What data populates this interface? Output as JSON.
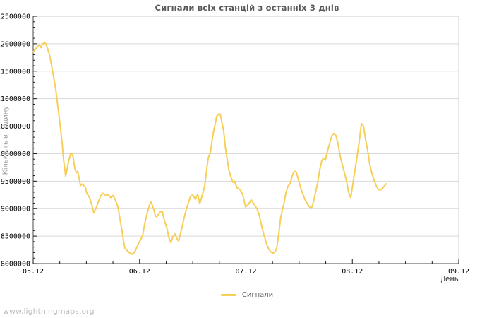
{
  "title": "Сигнали всіх станцій з останніх 3 днів",
  "watermark": "www.lightningmaps.org",
  "legend": {
    "label": "Сигнали"
  },
  "colors": {
    "line": "#f7ce58",
    "grid": "#d9d9d9",
    "axis_dark": "#4a4a4a",
    "axis_light": "#cccccc",
    "tick": "#1a1a1a",
    "title_text": "#595959",
    "watermark_text": "#bdbdbd"
  },
  "chart_data": {
    "type": "line",
    "title": "Сигнали всіх станцій з останніх 3 днів",
    "xlabel": "День",
    "ylabel": "Кількість в годину",
    "legend_position": "bottom-center",
    "grid": "horizontal-only",
    "ylim": [
      8000000,
      12500000
    ],
    "y_major_step": 500000,
    "y_minor_step": 100000,
    "y_tick_labels": [
      "8000000",
      "8500000",
      "9000000",
      "9500000",
      "10000000",
      "10500000",
      "11000000",
      "11500000",
      "12000000",
      "12500000"
    ],
    "xlim_days": [
      0,
      4
    ],
    "x_tick_labels": [
      "05.12",
      "06.12",
      "07.12",
      "08.12",
      "09.12"
    ],
    "x_minor_step_days": 0.25,
    "series": [
      {
        "name": "Сигнали",
        "color": "#f7ce58",
        "points": [
          [
            0.0,
            11850000
          ],
          [
            0.02,
            11900000
          ],
          [
            0.04,
            11950000
          ],
          [
            0.06,
            11980000
          ],
          [
            0.073,
            11930000
          ],
          [
            0.086,
            11990000
          ],
          [
            0.106,
            12020000
          ],
          [
            0.119,
            12000000
          ],
          [
            0.133,
            11930000
          ],
          [
            0.153,
            11800000
          ],
          [
            0.172,
            11620000
          ],
          [
            0.192,
            11400000
          ],
          [
            0.212,
            11170000
          ],
          [
            0.232,
            10850000
          ],
          [
            0.252,
            10550000
          ],
          [
            0.272,
            10200000
          ],
          [
            0.285,
            9900000
          ],
          [
            0.305,
            9590000
          ],
          [
            0.318,
            9700000
          ],
          [
            0.332,
            9850000
          ],
          [
            0.352,
            10000000
          ],
          [
            0.371,
            9990000
          ],
          [
            0.391,
            9740000
          ],
          [
            0.405,
            9650000
          ],
          [
            0.418,
            9680000
          ],
          [
            0.438,
            9500000
          ],
          [
            0.444,
            9420000
          ],
          [
            0.464,
            9450000
          ],
          [
            0.478,
            9410000
          ],
          [
            0.491,
            9390000
          ],
          [
            0.504,
            9280000
          ],
          [
            0.531,
            9200000
          ],
          [
            0.551,
            9070000
          ],
          [
            0.57,
            8920000
          ],
          [
            0.59,
            9000000
          ],
          [
            0.617,
            9150000
          ],
          [
            0.637,
            9240000
          ],
          [
            0.657,
            9280000
          ],
          [
            0.683,
            9240000
          ],
          [
            0.703,
            9260000
          ],
          [
            0.73,
            9200000
          ],
          [
            0.75,
            9240000
          ],
          [
            0.77,
            9170000
          ],
          [
            0.796,
            9040000
          ],
          [
            0.816,
            8810000
          ],
          [
            0.836,
            8590000
          ],
          [
            0.849,
            8410000
          ],
          [
            0.862,
            8280000
          ],
          [
            0.882,
            8240000
          ],
          [
            0.902,
            8200000
          ],
          [
            0.929,
            8170000
          ],
          [
            0.949,
            8200000
          ],
          [
            0.962,
            8240000
          ],
          [
            0.982,
            8330000
          ],
          [
            1.002,
            8410000
          ],
          [
            1.028,
            8500000
          ],
          [
            1.048,
            8720000
          ],
          [
            1.068,
            8890000
          ],
          [
            1.094,
            9070000
          ],
          [
            1.108,
            9130000
          ],
          [
            1.134,
            8980000
          ],
          [
            1.148,
            8870000
          ],
          [
            1.161,
            8850000
          ],
          [
            1.194,
            8940000
          ],
          [
            1.214,
            8950000
          ],
          [
            1.234,
            8780000
          ],
          [
            1.26,
            8630000
          ],
          [
            1.274,
            8480000
          ],
          [
            1.294,
            8380000
          ],
          [
            1.313,
            8490000
          ],
          [
            1.333,
            8540000
          ],
          [
            1.353,
            8450000
          ],
          [
            1.367,
            8410000
          ],
          [
            1.393,
            8610000
          ],
          [
            1.413,
            8780000
          ],
          [
            1.433,
            8940000
          ],
          [
            1.459,
            9110000
          ],
          [
            1.479,
            9220000
          ],
          [
            1.499,
            9250000
          ],
          [
            1.526,
            9170000
          ],
          [
            1.546,
            9260000
          ],
          [
            1.566,
            9090000
          ],
          [
            1.592,
            9260000
          ],
          [
            1.612,
            9410000
          ],
          [
            1.632,
            9720000
          ],
          [
            1.645,
            9920000
          ],
          [
            1.665,
            10020000
          ],
          [
            1.692,
            10370000
          ],
          [
            1.712,
            10550000
          ],
          [
            1.725,
            10680000
          ],
          [
            1.745,
            10720000
          ],
          [
            1.758,
            10720000
          ],
          [
            1.771,
            10600000
          ],
          [
            1.791,
            10410000
          ],
          [
            1.804,
            10150000
          ],
          [
            1.824,
            9890000
          ],
          [
            1.838,
            9720000
          ],
          [
            1.857,
            9590000
          ],
          [
            1.877,
            9480000
          ],
          [
            1.891,
            9500000
          ],
          [
            1.917,
            9380000
          ],
          [
            1.944,
            9350000
          ],
          [
            1.97,
            9250000
          ],
          [
            1.997,
            9030000
          ],
          [
            2.023,
            9080000
          ],
          [
            2.05,
            9160000
          ],
          [
            2.076,
            9080000
          ],
          [
            2.103,
            9000000
          ],
          [
            2.123,
            8900000
          ],
          [
            2.143,
            8720000
          ],
          [
            2.169,
            8520000
          ],
          [
            2.196,
            8350000
          ],
          [
            2.216,
            8260000
          ],
          [
            2.236,
            8210000
          ],
          [
            2.255,
            8190000
          ],
          [
            2.275,
            8220000
          ],
          [
            2.289,
            8280000
          ],
          [
            2.309,
            8550000
          ],
          [
            2.328,
            8850000
          ],
          [
            2.355,
            9070000
          ],
          [
            2.375,
            9280000
          ],
          [
            2.395,
            9410000
          ],
          [
            2.415,
            9450000
          ],
          [
            2.435,
            9600000
          ],
          [
            2.454,
            9680000
          ],
          [
            2.474,
            9660000
          ],
          [
            2.494,
            9520000
          ],
          [
            2.514,
            9380000
          ],
          [
            2.534,
            9270000
          ],
          [
            2.554,
            9170000
          ],
          [
            2.574,
            9100000
          ],
          [
            2.594,
            9040000
          ],
          [
            2.614,
            9000000
          ],
          [
            2.634,
            9120000
          ],
          [
            2.653,
            9280000
          ],
          [
            2.673,
            9460000
          ],
          [
            2.693,
            9700000
          ],
          [
            2.713,
            9880000
          ],
          [
            2.733,
            9920000
          ],
          [
            2.746,
            9880000
          ],
          [
            2.766,
            10050000
          ],
          [
            2.786,
            10180000
          ],
          [
            2.806,
            10320000
          ],
          [
            2.826,
            10370000
          ],
          [
            2.846,
            10330000
          ],
          [
            2.866,
            10180000
          ],
          [
            2.886,
            9950000
          ],
          [
            2.906,
            9800000
          ],
          [
            2.926,
            9650000
          ],
          [
            2.945,
            9500000
          ],
          [
            2.965,
            9300000
          ],
          [
            2.985,
            9200000
          ],
          [
            3.005,
            9450000
          ],
          [
            3.025,
            9700000
          ],
          [
            3.045,
            9950000
          ],
          [
            3.065,
            10220000
          ],
          [
            3.085,
            10550000
          ],
          [
            3.105,
            10500000
          ],
          [
            3.125,
            10250000
          ],
          [
            3.145,
            10050000
          ],
          [
            3.164,
            9800000
          ],
          [
            3.184,
            9640000
          ],
          [
            3.204,
            9520000
          ],
          [
            3.224,
            9420000
          ],
          [
            3.244,
            9350000
          ],
          [
            3.264,
            9340000
          ],
          [
            3.284,
            9370000
          ],
          [
            3.304,
            9420000
          ],
          [
            3.317,
            9450000
          ]
        ]
      }
    ]
  }
}
